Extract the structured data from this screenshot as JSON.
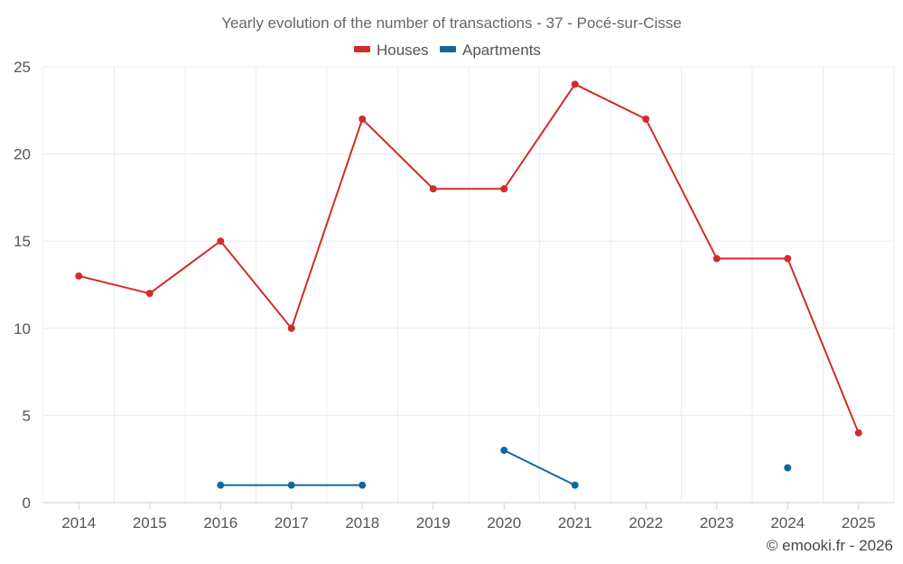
{
  "chart_data": {
    "type": "line",
    "title": "Yearly evolution of the number of transactions - 37 - Pocé-sur-Cisse",
    "categories": [
      "2014",
      "2015",
      "2016",
      "2017",
      "2018",
      "2019",
      "2020",
      "2021",
      "2022",
      "2023",
      "2024",
      "2025"
    ],
    "yticks": [
      0,
      5,
      10,
      15,
      20,
      25
    ],
    "ylim": [
      0,
      25
    ],
    "grid": true,
    "legend_position": "top-center",
    "series": [
      {
        "name": "Houses",
        "color": "#d32a2a",
        "values": [
          13,
          12,
          15,
          10,
          22,
          18,
          18,
          24,
          22,
          14,
          14,
          4
        ]
      },
      {
        "name": "Apartments",
        "color": "#0f6a9b",
        "values": [
          null,
          null,
          1,
          1,
          1,
          null,
          3,
          1,
          null,
          null,
          2,
          null
        ]
      }
    ],
    "credit": "© emooki.fr - 2026"
  }
}
